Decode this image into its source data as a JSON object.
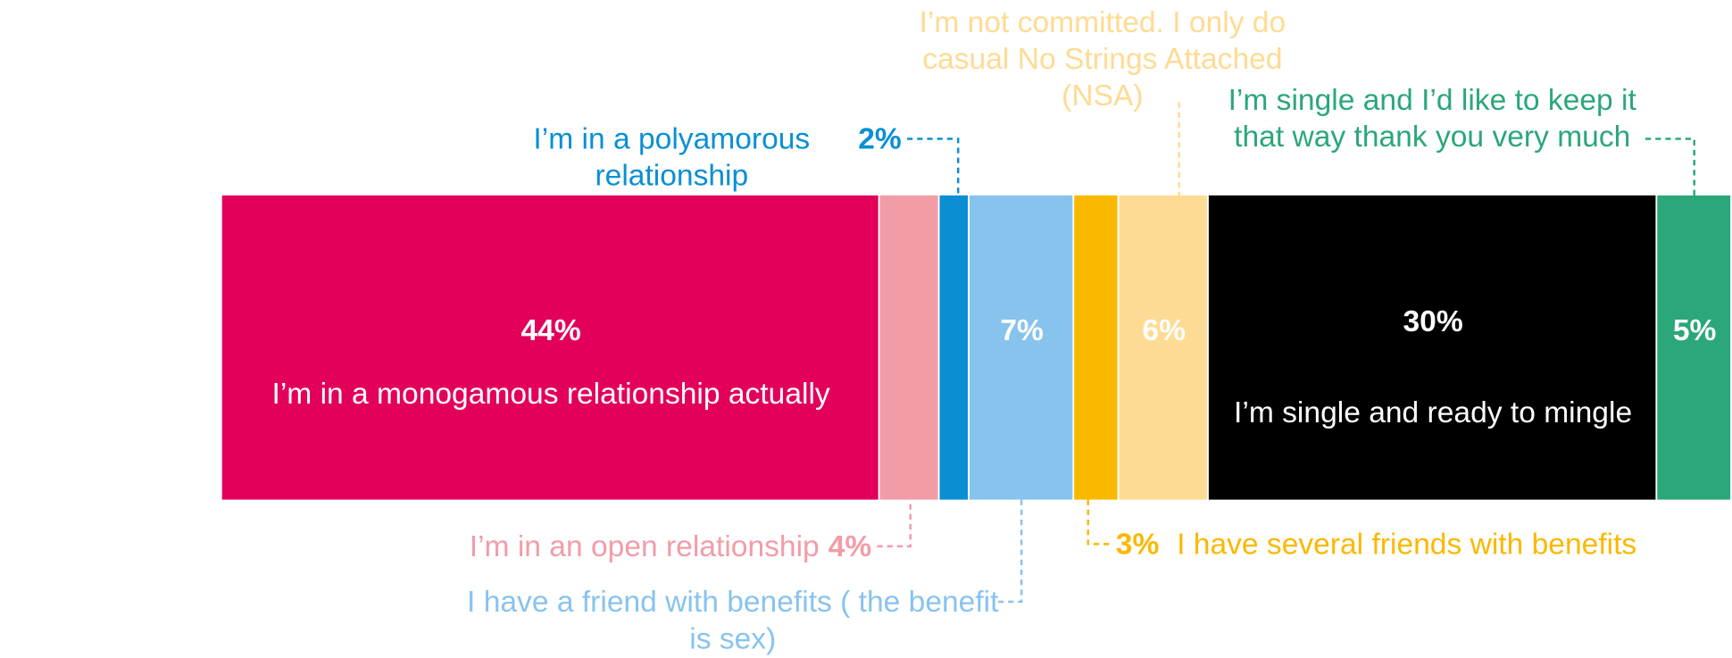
{
  "chart_data": {
    "type": "bar",
    "orientation": "horizontal",
    "stacked": true,
    "series": [
      {
        "name": "I’m in a monogamous relationship actually",
        "color": "#e2005a",
        "values": [
          44
        ],
        "value_labels": [
          "44%"
        ]
      },
      {
        "name": "I’m in an open relationship",
        "color": "#f29ca8",
        "values": [
          4
        ],
        "value_labels": [
          "4%"
        ]
      },
      {
        "name": "I’m in a polyamorous relationship",
        "color": "#0a8fd4",
        "values": [
          2
        ],
        "value_labels": [
          "2%"
        ]
      },
      {
        "name": "I have a friend with benefits ( the benefit is sex)",
        "color": "#88c3ee",
        "values": [
          7
        ],
        "value_labels": [
          "7%"
        ]
      },
      {
        "name": "I have several friends with benefits",
        "color": "#fbb800",
        "values": [
          3
        ],
        "value_labels": [
          "3%"
        ]
      },
      {
        "name": "I’m not committed. I only do casual No Strings Attached (NSA)",
        "color": "#fedb94",
        "values": [
          6
        ],
        "value_labels": [
          "6%"
        ]
      },
      {
        "name": "I’m single and ready to mingle",
        "color": "#000000",
        "values": [
          30
        ],
        "value_labels": [
          "30%"
        ]
      },
      {
        "name": "I’m single and I’d like to keep it that way thank you very much",
        "color": "#2ba77a",
        "values": [
          5
        ],
        "value_labels": [
          "5%"
        ]
      }
    ]
  }
}
